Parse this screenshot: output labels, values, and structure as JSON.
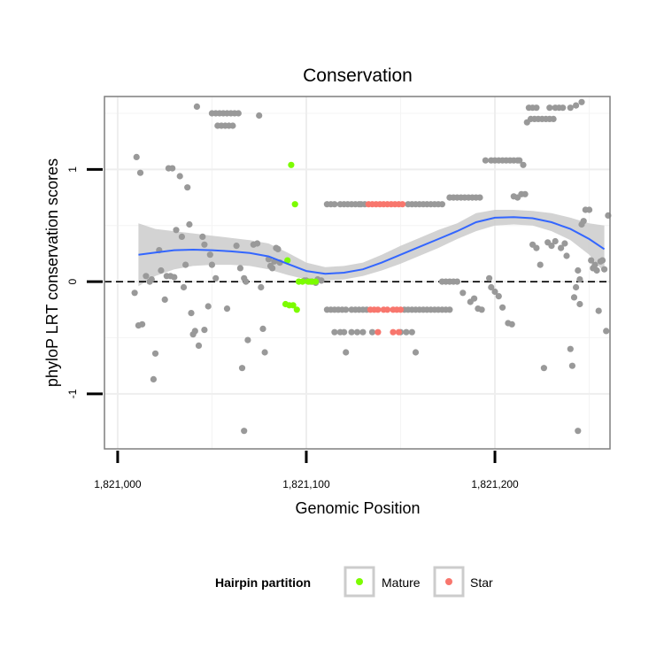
{
  "chart_data": {
    "type": "scatter",
    "title": "Conservation",
    "xlabel": "Genomic Position",
    "ylabel": "phyloP LRT conservation scores",
    "xlim": [
      1820993,
      1821261
    ],
    "ylim": [
      -1.49,
      1.65
    ],
    "x_ticks": [
      1821000,
      1821100,
      1821200
    ],
    "x_tick_labels": [
      "1,821,000",
      "1,821,100",
      "1,821,200"
    ],
    "y_ticks": [
      -1,
      0,
      1
    ],
    "y_tick_labels": [
      "-1",
      "0",
      "1"
    ],
    "grid": true,
    "reference_line": {
      "y": 0,
      "style": "dashed"
    },
    "colors": {
      "other": "#999999",
      "Mature": "#7CFC00",
      "Star": "#F8766D",
      "smooth": "#3366FF",
      "ribbon": "#C8C8C8"
    },
    "legend": {
      "title": "Hairpin partition",
      "position": "bottom",
      "entries": [
        {
          "label": "Mature",
          "color": "#7CFC00"
        },
        {
          "label": "Star",
          "color": "#F8766D"
        }
      ]
    },
    "series": [
      {
        "group": "other",
        "points": [
          [
            1821010,
            1.11
          ],
          [
            1821012,
            0.97
          ],
          [
            1821011,
            -0.39
          ],
          [
            1821013,
            -0.38
          ],
          [
            1821009,
            -0.1
          ],
          [
            1821015,
            0.05
          ],
          [
            1821017,
            0.0
          ],
          [
            1821018,
            0.02
          ],
          [
            1821020,
            -0.64
          ],
          [
            1821019,
            -0.87
          ],
          [
            1821022,
            0.28
          ],
          [
            1821023,
            0.1
          ],
          [
            1821025,
            -0.16
          ],
          [
            1821027,
            1.01
          ],
          [
            1821029,
            1.01
          ],
          [
            1821026,
            0.05
          ],
          [
            1821028,
            0.05
          ],
          [
            1821030,
            0.04
          ],
          [
            1821031,
            0.46
          ],
          [
            1821034,
            0.4
          ],
          [
            1821037,
            0.84
          ],
          [
            1821033,
            0.94
          ],
          [
            1821036,
            0.15
          ],
          [
            1821038,
            0.51
          ],
          [
            1821035,
            -0.05
          ],
          [
            1821039,
            -0.28
          ],
          [
            1821041,
            -0.44
          ],
          [
            1821043,
            -0.57
          ],
          [
            1821040,
            -0.47
          ],
          [
            1821042,
            1.56
          ],
          [
            1821045,
            0.4
          ],
          [
            1821046,
            0.33
          ],
          [
            1821048,
            -0.22
          ],
          [
            1821049,
            0.24
          ],
          [
            1821050,
            0.15
          ],
          [
            1821052,
            0.03
          ],
          [
            1821046,
            -0.43
          ],
          [
            1821050,
            1.5
          ],
          [
            1821052,
            1.5
          ],
          [
            1821054,
            1.5
          ],
          [
            1821056,
            1.5
          ],
          [
            1821058,
            1.5
          ],
          [
            1821060,
            1.5
          ],
          [
            1821062,
            1.5
          ],
          [
            1821064,
            1.5
          ],
          [
            1821053,
            1.39
          ],
          [
            1821055,
            1.39
          ],
          [
            1821057,
            1.39
          ],
          [
            1821059,
            1.39
          ],
          [
            1821061,
            1.39
          ],
          [
            1821058,
            -0.24
          ],
          [
            1821063,
            0.32
          ],
          [
            1821065,
            0.12
          ],
          [
            1821067,
            0.03
          ],
          [
            1821068,
            0.0
          ],
          [
            1821066,
            -0.77
          ],
          [
            1821069,
            -0.52
          ],
          [
            1821067,
            -1.33
          ],
          [
            1821072,
            0.33
          ],
          [
            1821074,
            0.34
          ],
          [
            1821075,
            1.48
          ],
          [
            1821076,
            -0.05
          ],
          [
            1821077,
            -0.42
          ],
          [
            1821078,
            -0.63
          ],
          [
            1821080,
            0.2
          ],
          [
            1821081,
            0.14
          ],
          [
            1821082,
            0.12
          ],
          [
            1821083,
            0.18
          ],
          [
            1821084,
            0.3
          ],
          [
            1821085,
            0.29
          ],
          [
            1821086,
            0.17
          ],
          [
            1821099,
            0.01
          ],
          [
            1821100,
            0.01
          ],
          [
            1821102,
            0.0
          ],
          [
            1821103,
            0.0
          ],
          [
            1821105,
            -0.01
          ],
          [
            1821106,
            0.02
          ],
          [
            1821108,
            0.01
          ],
          [
            1821111,
            -0.25
          ],
          [
            1821113,
            -0.25
          ],
          [
            1821115,
            -0.25
          ],
          [
            1821117,
            -0.25
          ],
          [
            1821119,
            -0.25
          ],
          [
            1821121,
            -0.25
          ],
          [
            1821124,
            -0.25
          ],
          [
            1821126,
            -0.25
          ],
          [
            1821128,
            -0.25
          ],
          [
            1821130,
            -0.25
          ],
          [
            1821132,
            -0.25
          ],
          [
            1821111,
            0.69
          ],
          [
            1821113,
            0.69
          ],
          [
            1821115,
            0.69
          ],
          [
            1821118,
            0.69
          ],
          [
            1821120,
            0.69
          ],
          [
            1821122,
            0.69
          ],
          [
            1821124,
            0.69
          ],
          [
            1821126,
            0.69
          ],
          [
            1821129,
            0.69
          ],
          [
            1821131,
            0.69
          ],
          [
            1821115,
            -0.45
          ],
          [
            1821118,
            -0.45
          ],
          [
            1821120,
            -0.45
          ],
          [
            1821124,
            -0.45
          ],
          [
            1821127,
            -0.45
          ],
          [
            1821130,
            -0.45
          ],
          [
            1821135,
            -0.45
          ],
          [
            1821121,
            -0.63
          ],
          [
            1821128,
            0.69
          ],
          [
            1821154,
            0.69
          ],
          [
            1821156,
            0.69
          ],
          [
            1821158,
            0.69
          ],
          [
            1821160,
            0.69
          ],
          [
            1821162,
            0.69
          ],
          [
            1821164,
            0.69
          ],
          [
            1821166,
            0.69
          ],
          [
            1821168,
            0.69
          ],
          [
            1821170,
            0.69
          ],
          [
            1821172,
            0.69
          ],
          [
            1821152,
            -0.25
          ],
          [
            1821154,
            -0.25
          ],
          [
            1821156,
            -0.25
          ],
          [
            1821158,
            -0.25
          ],
          [
            1821160,
            -0.25
          ],
          [
            1821162,
            -0.25
          ],
          [
            1821164,
            -0.25
          ],
          [
            1821166,
            -0.25
          ],
          [
            1821168,
            -0.25
          ],
          [
            1821170,
            -0.25
          ],
          [
            1821172,
            -0.25
          ],
          [
            1821174,
            -0.25
          ],
          [
            1821176,
            -0.25
          ],
          [
            1821150,
            -0.45
          ],
          [
            1821153,
            -0.45
          ],
          [
            1821156,
            -0.45
          ],
          [
            1821158,
            -0.63
          ],
          [
            1821172,
            0.0
          ],
          [
            1821174,
            0.0
          ],
          [
            1821176,
            0.0
          ],
          [
            1821178,
            0.0
          ],
          [
            1821180,
            0.0
          ],
          [
            1821176,
            0.75
          ],
          [
            1821178,
            0.75
          ],
          [
            1821180,
            0.75
          ],
          [
            1821182,
            0.75
          ],
          [
            1821184,
            0.75
          ],
          [
            1821186,
            0.75
          ],
          [
            1821188,
            0.75
          ],
          [
            1821190,
            0.75
          ],
          [
            1821192,
            0.75
          ],
          [
            1821183,
            -0.1
          ],
          [
            1821187,
            -0.18
          ],
          [
            1821189,
            -0.15
          ],
          [
            1821191,
            -0.24
          ],
          [
            1821193,
            -0.25
          ],
          [
            1821195,
            1.08
          ],
          [
            1821198,
            1.08
          ],
          [
            1821200,
            1.08
          ],
          [
            1821202,
            1.08
          ],
          [
            1821204,
            1.08
          ],
          [
            1821206,
            1.08
          ],
          [
            1821208,
            1.08
          ],
          [
            1821210,
            1.08
          ],
          [
            1821212,
            1.08
          ],
          [
            1821213,
            1.08
          ],
          [
            1821215,
            1.04
          ],
          [
            1821197,
            0.03
          ],
          [
            1821198,
            -0.05
          ],
          [
            1821200,
            -0.09
          ],
          [
            1821202,
            -0.13
          ],
          [
            1821204,
            -0.23
          ],
          [
            1821207,
            -0.37
          ],
          [
            1821209,
            -0.38
          ],
          [
            1821210,
            0.76
          ],
          [
            1821212,
            0.75
          ],
          [
            1821214,
            0.78
          ],
          [
            1821216,
            0.78
          ],
          [
            1821217,
            1.42
          ],
          [
            1821219,
            1.45
          ],
          [
            1821221,
            1.45
          ],
          [
            1821223,
            1.45
          ],
          [
            1821225,
            1.45
          ],
          [
            1821227,
            1.45
          ],
          [
            1821229,
            1.45
          ],
          [
            1821231,
            1.45
          ],
          [
            1821218,
            1.55
          ],
          [
            1821220,
            1.55
          ],
          [
            1821222,
            1.55
          ],
          [
            1821229,
            1.55
          ],
          [
            1821232,
            1.55
          ],
          [
            1821234,
            1.55
          ],
          [
            1821236,
            1.55
          ],
          [
            1821240,
            1.55
          ],
          [
            1821243,
            1.57
          ],
          [
            1821246,
            1.6
          ],
          [
            1821220,
            0.33
          ],
          [
            1821222,
            0.3
          ],
          [
            1821224,
            0.15
          ],
          [
            1821226,
            -0.77
          ],
          [
            1821228,
            0.35
          ],
          [
            1821230,
            0.32
          ],
          [
            1821232,
            0.36
          ],
          [
            1821235,
            0.3
          ],
          [
            1821237,
            0.34
          ],
          [
            1821238,
            0.23
          ],
          [
            1821240,
            -0.6
          ],
          [
            1821241,
            -0.75
          ],
          [
            1821242,
            -0.14
          ],
          [
            1821243,
            -0.05
          ],
          [
            1821244,
            0.1
          ],
          [
            1821245,
            -0.2
          ],
          [
            1821244,
            -1.33
          ],
          [
            1821245,
            0.02
          ],
          [
            1821246,
            0.51
          ],
          [
            1821247,
            0.54
          ],
          [
            1821248,
            0.64
          ],
          [
            1821250,
            0.64
          ],
          [
            1821251,
            0.19
          ],
          [
            1821252,
            0.12
          ],
          [
            1821253,
            0.15
          ],
          [
            1821254,
            0.1
          ],
          [
            1821255,
            -0.26
          ],
          [
            1821256,
            0.18
          ],
          [
            1821257,
            0.19
          ],
          [
            1821258,
            0.11
          ],
          [
            1821259,
            -0.44
          ],
          [
            1821260,
            0.59
          ]
        ]
      },
      {
        "group": "Mature",
        "points": [
          [
            1821092,
            1.04
          ],
          [
            1821094,
            0.69
          ],
          [
            1821090,
            0.19
          ],
          [
            1821089,
            -0.2
          ],
          [
            1821091,
            -0.21
          ],
          [
            1821093,
            -0.21
          ],
          [
            1821095,
            -0.25
          ],
          [
            1821096,
            0.0
          ],
          [
            1821098,
            0.0
          ],
          [
            1821101,
            0.0
          ],
          [
            1821103,
            0.0
          ],
          [
            1821105,
            0.0
          ]
        ]
      },
      {
        "group": "Star",
        "points": [
          [
            1821133,
            0.69
          ],
          [
            1821135,
            0.69
          ],
          [
            1821137,
            0.69
          ],
          [
            1821139,
            0.69
          ],
          [
            1821141,
            0.69
          ],
          [
            1821143,
            0.69
          ],
          [
            1821145,
            0.69
          ],
          [
            1821147,
            0.69
          ],
          [
            1821149,
            0.69
          ],
          [
            1821151,
            0.69
          ],
          [
            1821134,
            -0.25
          ],
          [
            1821136,
            -0.25
          ],
          [
            1821138,
            -0.25
          ],
          [
            1821141,
            -0.25
          ],
          [
            1821143,
            -0.25
          ],
          [
            1821146,
            -0.25
          ],
          [
            1821148,
            -0.25
          ],
          [
            1821150,
            -0.25
          ],
          [
            1821138,
            -0.45
          ],
          [
            1821146,
            -0.45
          ],
          [
            1821149,
            -0.45
          ]
        ]
      }
    ],
    "smooth": {
      "x": [
        1821011,
        1821020,
        1821030,
        1821040,
        1821050,
        1821060,
        1821070,
        1821080,
        1821090,
        1821100,
        1821110,
        1821120,
        1821130,
        1821140,
        1821150,
        1821160,
        1821170,
        1821180,
        1821190,
        1821200,
        1821210,
        1821220,
        1821230,
        1821240,
        1821250,
        1821258
      ],
      "y": [
        0.24,
        0.26,
        0.28,
        0.285,
        0.28,
        0.27,
        0.255,
        0.225,
        0.16,
        0.095,
        0.07,
        0.08,
        0.11,
        0.17,
        0.24,
        0.31,
        0.38,
        0.45,
        0.53,
        0.57,
        0.575,
        0.565,
        0.53,
        0.47,
        0.38,
        0.29
      ],
      "lower": [
        -0.04,
        0.05,
        0.11,
        0.14,
        0.15,
        0.15,
        0.14,
        0.11,
        0.06,
        0.02,
        0.01,
        0.02,
        0.05,
        0.1,
        0.16,
        0.23,
        0.3,
        0.38,
        0.45,
        0.5,
        0.51,
        0.5,
        0.45,
        0.37,
        0.24,
        0.08
      ],
      "upper": [
        0.52,
        0.47,
        0.45,
        0.43,
        0.41,
        0.39,
        0.37,
        0.34,
        0.26,
        0.17,
        0.13,
        0.14,
        0.17,
        0.24,
        0.32,
        0.39,
        0.46,
        0.52,
        0.61,
        0.64,
        0.64,
        0.63,
        0.61,
        0.57,
        0.52,
        0.5
      ]
    }
  }
}
